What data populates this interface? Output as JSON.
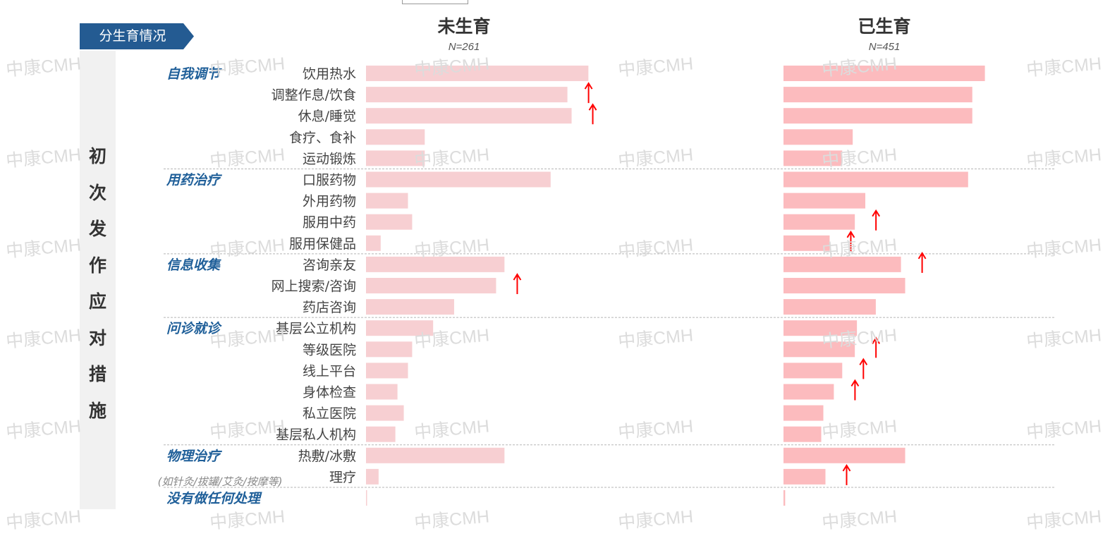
{
  "tag_label": "分生育情况",
  "vertical_title": "初次发作应对措施",
  "watermark": "中康CMH",
  "colors": {
    "tag_bg": "#245b92",
    "bar_left": "#f7cfd2",
    "bar_right": "#fcbbbe",
    "category_text": "#1f5f99",
    "label_text": "#444444",
    "arrow": "#ff0000",
    "separator": "#b5b5b5"
  },
  "chart_data": {
    "type": "bar",
    "panels": [
      {
        "title": "未生育",
        "subtitle": "N=261"
      },
      {
        "title": "已生育",
        "subtitle": "N=451"
      }
    ],
    "groups": [
      {
        "name": "自我调节",
        "note": "",
        "items": [
          "饮用热水",
          "调整作息/饮食",
          "休息/睡觉",
          "食疗、食补",
          "运动锻炼"
        ]
      },
      {
        "name": "用药治疗",
        "note": "",
        "items": [
          "口服药物",
          "外用药物",
          "服用中药",
          "服用保健品"
        ]
      },
      {
        "name": "信息收集",
        "note": "",
        "items": [
          "咨询亲友",
          "网上搜索/咨询",
          "药店咨询"
        ]
      },
      {
        "name": "问诊就诊",
        "note": "",
        "items": [
          "基层公立机构",
          "等级医院",
          "线上平台",
          "身体检查",
          "私立医院",
          "基层私人机构"
        ]
      },
      {
        "name": "物理治疗",
        "note": "(如针灸/拔罐/艾灸/按摩等)",
        "items": [
          "热敷/冰敷",
          "理疗"
        ]
      },
      {
        "name": "没有做任何处理",
        "note": "",
        "items": [
          ""
        ]
      }
    ],
    "series": [
      {
        "values": [
          0.53,
          0.48,
          0.49,
          0.14,
          0.14,
          0.44,
          0.1,
          0.11,
          0.035,
          0.33,
          0.31,
          0.21,
          0.16,
          0.11,
          0.1,
          0.075,
          0.09,
          0.07,
          0.33,
          0.03,
          0.002
        ],
        "up_arrows": [
          "调整作息/饮食",
          "休息/睡觉",
          "网上搜索/咨询"
        ]
      },
      {
        "values": [
          0.48,
          0.45,
          0.45,
          0.165,
          0.14,
          0.44,
          0.195,
          0.17,
          0.11,
          0.28,
          0.29,
          0.22,
          0.175,
          0.17,
          0.14,
          0.12,
          0.095,
          0.09,
          0.29,
          0.1,
          0.004
        ],
        "up_arrows": [
          "服用中药",
          "服用保健品",
          "咨询亲友",
          "等级医院",
          "线上平台",
          "身体检查",
          "理疗"
        ]
      }
    ],
    "xlim": [
      0,
      1
    ],
    "grid": false
  }
}
